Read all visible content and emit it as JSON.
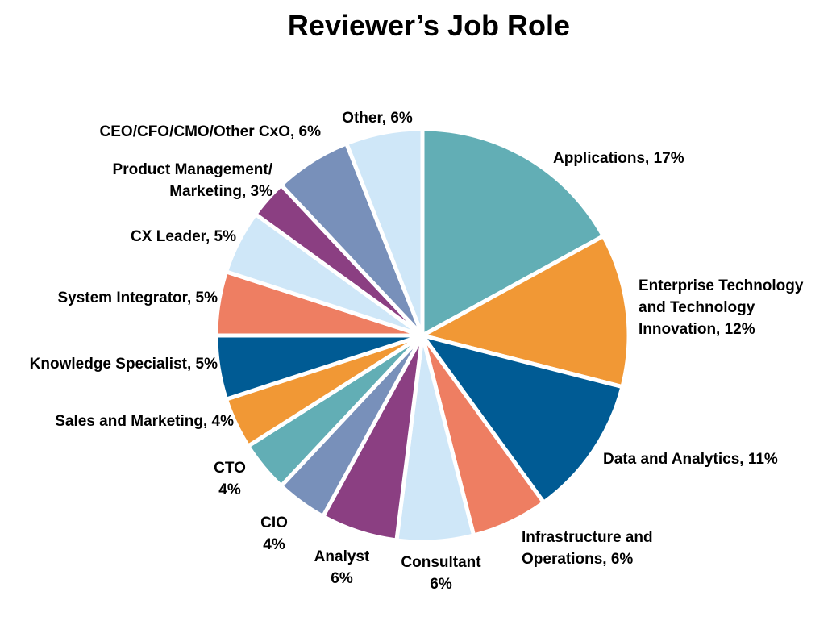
{
  "chart_data": {
    "type": "pie",
    "title": "Reviewer’s Job Role",
    "slices": [
      {
        "label": "Applications, 17%",
        "value": 17,
        "color": "#62aeb5"
      },
      {
        "label": "Enterprise Technology and Technology Innovation, 12%",
        "value": 12,
        "color": "#f19835"
      },
      {
        "label": "Data and Analytics, 11%",
        "value": 11,
        "color": "#005b94"
      },
      {
        "label": "Infrastructure and Operations, 6%",
        "value": 6,
        "color": "#ee7e62"
      },
      {
        "label": "Consultant 6%",
        "value": 6,
        "color": "#cfe7f8"
      },
      {
        "label": "Analyst 6%",
        "value": 6,
        "color": "#8b3f82"
      },
      {
        "label": "CIO 4%",
        "value": 4,
        "color": "#7890ba"
      },
      {
        "label": "CTO 4%",
        "value": 4,
        "color": "#62aeb5"
      },
      {
        "label": "Sales and Marketing, 4%",
        "value": 4,
        "color": "#f19835"
      },
      {
        "label": "Knowledge Specialist, 5%",
        "value": 5,
        "color": "#005b94"
      },
      {
        "label": "System Integrator, 5%",
        "value": 5,
        "color": "#ee7e62"
      },
      {
        "label": "CX Leader, 5%",
        "value": 5,
        "color": "#cfe7f8"
      },
      {
        "label": "Product Management/ Marketing, 3%",
        "value": 3,
        "color": "#8b3f82"
      },
      {
        "label": "CEO/CFO/CMO/Other CxO, 6%",
        "value": 6,
        "color": "#7890ba"
      },
      {
        "label": "Other, 6%",
        "value": 6,
        "color": "#cfe7f8"
      }
    ],
    "label_lines": {
      "l0": [
        "Applications, 17%"
      ],
      "l1": [
        "Enterprise Technology",
        "and Technology",
        "Innovation, 12%"
      ],
      "l2": [
        "Data and Analytics, 11%"
      ],
      "l3": [
        "Infrastructure and",
        "Operations, 6%"
      ],
      "l4": [
        "Consultant",
        "6%"
      ],
      "l5": [
        "Analyst",
        "6%"
      ],
      "l6": [
        "CIO",
        "4%"
      ],
      "l7": [
        "CTO",
        "4%"
      ],
      "l8": [
        "Sales and Marketing, 4%"
      ],
      "l9": [
        "Knowledge Specialist, 5%"
      ],
      "l10": [
        "System Integrator,  5%"
      ],
      "l11": [
        "CX Leader, 5%"
      ],
      "l12": [
        "Product Management/",
        "Marketing, 3%"
      ],
      "l13": [
        "CEO/CFO/CMO/Other CxO, 6%"
      ],
      "l14": [
        "Other, 6%"
      ]
    }
  }
}
